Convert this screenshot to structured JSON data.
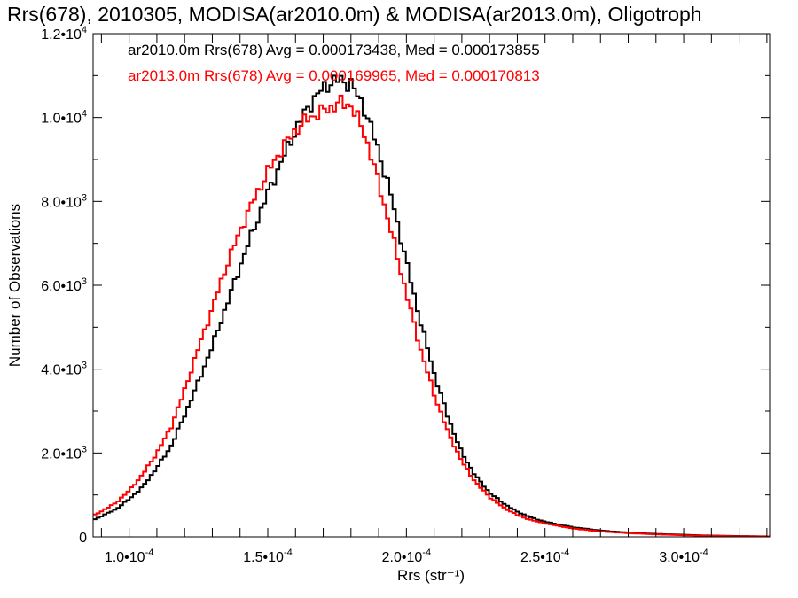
{
  "chart_data": {
    "type": "line",
    "title": "Rrs(678), 2010305, MODISA(ar2010.0m) & MODISA(ar2013.0m), Oligotroph",
    "xlabel": "Rrs (str⁻¹)",
    "ylabel": "Number of Observations",
    "xlim": [
      8.7e-05,
      0.000331
    ],
    "ylim": [
      0,
      12000
    ],
    "grid": false,
    "x_ticks": [
      {
        "value": 0.0001,
        "mantissa": "1.0",
        "exp": "-4"
      },
      {
        "value": 0.00015,
        "mantissa": "1.5",
        "exp": "-4"
      },
      {
        "value": 0.0002,
        "mantissa": "2.0",
        "exp": "-4"
      },
      {
        "value": 0.00025,
        "mantissa": "2.5",
        "exp": "-4"
      },
      {
        "value": 0.0003,
        "mantissa": "3.0",
        "exp": "-4"
      }
    ],
    "y_ticks": [
      {
        "value": 0,
        "mantissa": "0",
        "exp": ""
      },
      {
        "value": 2000,
        "mantissa": "2.0",
        "exp": "3"
      },
      {
        "value": 4000,
        "mantissa": "4.0",
        "exp": "3"
      },
      {
        "value": 6000,
        "mantissa": "6.0",
        "exp": "3"
      },
      {
        "value": 8000,
        "mantissa": "8.0",
        "exp": "3"
      },
      {
        "value": 10000,
        "mantissa": "1.0",
        "exp": "4"
      },
      {
        "value": 12000,
        "mantissa": "1.2",
        "exp": "4"
      }
    ],
    "series": [
      {
        "annotation": "ar2010.0m Rrs(678) Avg = 0.000173438, Med = 0.000173855",
        "color": "#000000",
        "x": [
          8.7e-05,
          9.5e-05,
          0.0001,
          0.000105,
          0.00011,
          0.000115,
          0.00012,
          0.000125,
          0.00013,
          0.000135,
          0.00014,
          0.000145,
          0.00015,
          0.000155,
          0.00016,
          0.000165,
          0.00017,
          0.000173,
          0.000176,
          0.00018,
          0.000185,
          0.00019,
          0.000195,
          0.0002,
          0.000205,
          0.00021,
          0.000215,
          0.00022,
          0.000225,
          0.00023,
          0.000235,
          0.00024,
          0.000245,
          0.00025,
          0.00026,
          0.00027,
          0.00028,
          0.00029,
          0.0003,
          0.00031,
          0.00032,
          0.000331
        ],
        "y": [
          400,
          650,
          900,
          1200,
          1650,
          2150,
          2900,
          3700,
          4550,
          5500,
          6450,
          7350,
          8200,
          8950,
          9700,
          10300,
          10700,
          10850,
          10900,
          10800,
          10200,
          9200,
          8000,
          6550,
          5150,
          3900,
          2850,
          2000,
          1450,
          1050,
          800,
          600,
          460,
          360,
          230,
          150,
          100,
          70,
          50,
          30,
          20,
          10
        ]
      },
      {
        "annotation": "ar2013.0m Rrs(678) Avg = 0.000169965, Med = 0.000170813",
        "color": "#ff0000",
        "x": [
          8.7e-05,
          9.5e-05,
          0.0001,
          0.000105,
          0.00011,
          0.000115,
          0.00012,
          0.000125,
          0.00013,
          0.000135,
          0.00014,
          0.000145,
          0.00015,
          0.000155,
          0.00016,
          0.000165,
          0.00017,
          0.000173,
          0.000176,
          0.00018,
          0.000185,
          0.00019,
          0.000195,
          0.0002,
          0.000205,
          0.00021,
          0.000215,
          0.00022,
          0.000225,
          0.00023,
          0.000235,
          0.00024,
          0.000245,
          0.00025,
          0.00026,
          0.00027,
          0.00028,
          0.00029,
          0.0003,
          0.00031,
          0.00032,
          0.000331
        ],
        "y": [
          500,
          800,
          1100,
          1500,
          2000,
          2600,
          3500,
          4500,
          5450,
          6450,
          7300,
          8050,
          8700,
          9250,
          9700,
          10000,
          10150,
          10250,
          10350,
          10300,
          9600,
          8450,
          7150,
          5800,
          4500,
          3400,
          2500,
          1800,
          1300,
          950,
          700,
          520,
          400,
          320,
          200,
          130,
          90,
          60,
          40,
          25,
          15,
          10
        ]
      }
    ]
  }
}
